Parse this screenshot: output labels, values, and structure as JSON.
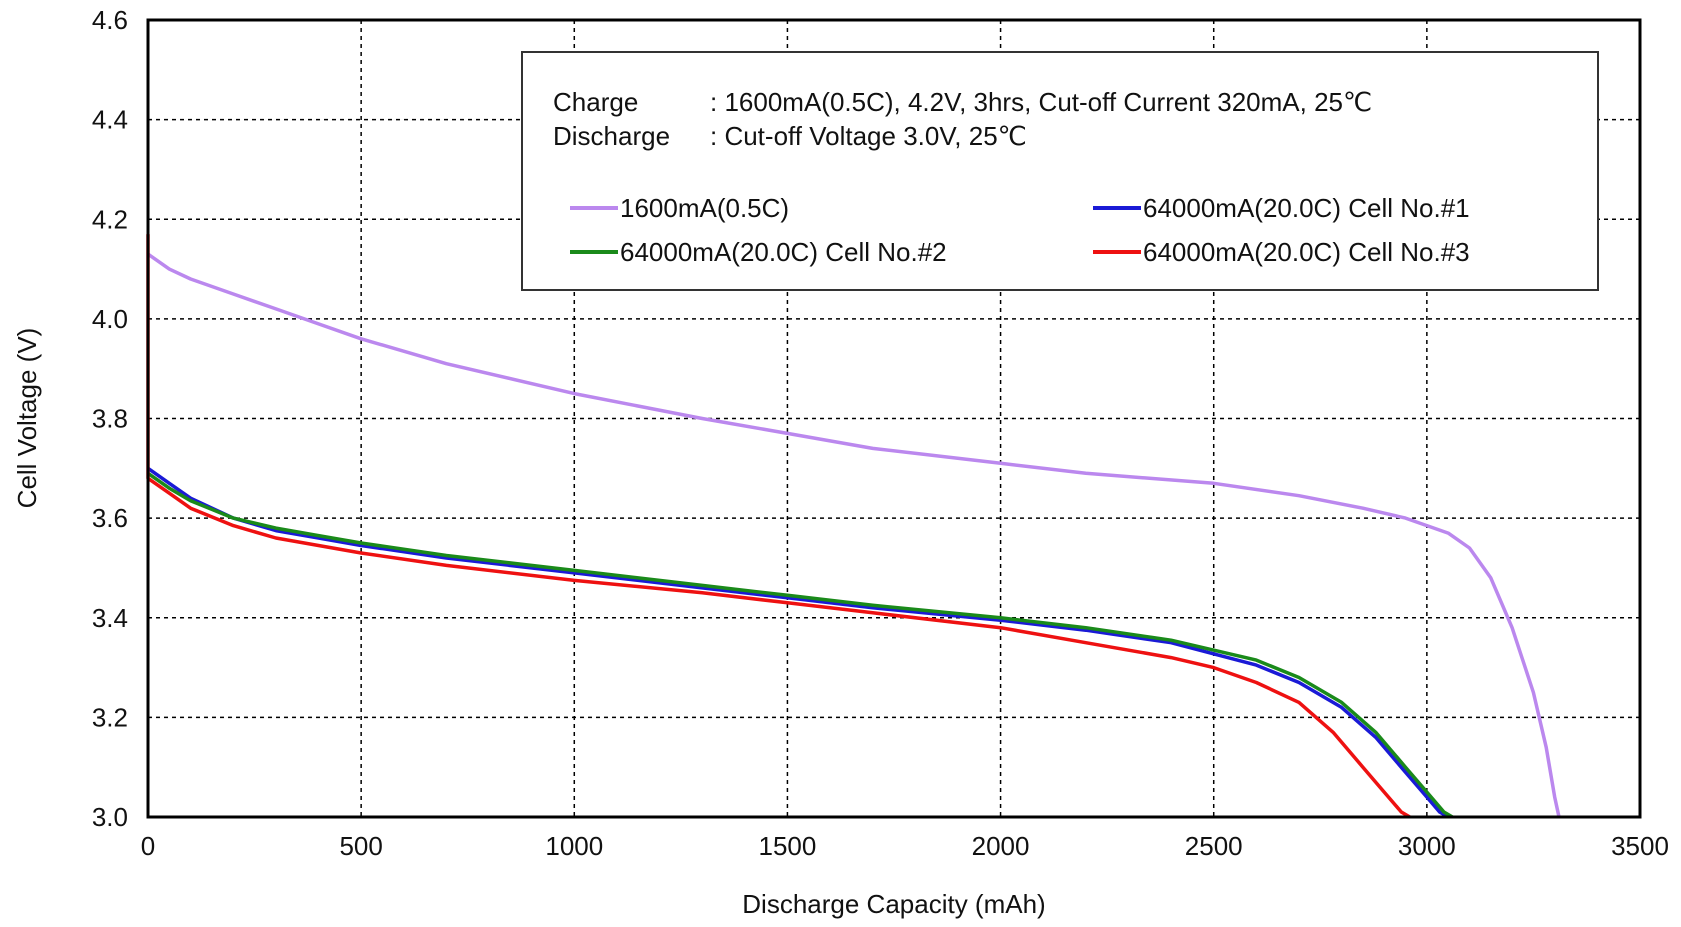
{
  "chart_data": {
    "type": "line",
    "xlabel": "Discharge Capacity (mAh)",
    "ylabel": "Cell Voltage (V)",
    "xlim": [
      0,
      3500
    ],
    "ylim": [
      3.0,
      4.6
    ],
    "xticks": [
      "0",
      "500",
      "1000",
      "1500",
      "2000",
      "2500",
      "3000",
      "3500"
    ],
    "yticks": [
      "3.0",
      "3.2",
      "3.4",
      "3.6",
      "3.8",
      "4.0",
      "4.2",
      "4.4",
      "4.6"
    ],
    "xtick_values": [
      0,
      500,
      1000,
      1500,
      2000,
      2500,
      3000,
      3500
    ],
    "ytick_values": [
      3.0,
      3.2,
      3.4,
      3.6,
      3.8,
      4.0,
      4.2,
      4.4,
      4.6
    ],
    "grid": true,
    "legend_position": "top-right",
    "annotations": {
      "charge_label": "Charge",
      "charge_text": ": 1600mA(0.5C), 4.2V, 3hrs, Cut-off Current 320mA, 25℃",
      "discharge_label": "Discharge",
      "discharge_text": ": Cut-off Voltage 3.0V, 25℃"
    },
    "series": [
      {
        "name": "1600mA(0.5C)",
        "color": "#bb88ee",
        "x": [
          0,
          50,
          100,
          200,
          300,
          400,
          500,
          700,
          1000,
          1300,
          1500,
          1700,
          2000,
          2200,
          2500,
          2700,
          2850,
          2950,
          3050,
          3100,
          3150,
          3200,
          3250,
          3280,
          3300,
          3310
        ],
        "y": [
          4.13,
          4.1,
          4.08,
          4.05,
          4.02,
          3.99,
          3.96,
          3.91,
          3.85,
          3.8,
          3.77,
          3.74,
          3.71,
          3.69,
          3.67,
          3.645,
          3.62,
          3.6,
          3.57,
          3.54,
          3.48,
          3.38,
          3.25,
          3.14,
          3.04,
          3.0
        ]
      },
      {
        "name": "64000mA(20.0C) Cell No.#1",
        "color": "#1a1ad6",
        "x": [
          0,
          50,
          100,
          200,
          300,
          400,
          500,
          700,
          1000,
          1300,
          1500,
          1700,
          2000,
          2200,
          2400,
          2600,
          2700,
          2800,
          2880,
          2950,
          3000,
          3030,
          3050
        ],
        "y": [
          3.7,
          3.67,
          3.64,
          3.6,
          3.575,
          3.56,
          3.545,
          3.52,
          3.49,
          3.46,
          3.44,
          3.42,
          3.395,
          3.375,
          3.35,
          3.305,
          3.27,
          3.22,
          3.16,
          3.09,
          3.04,
          3.01,
          3.0
        ]
      },
      {
        "name": "64000mA(20.0C) Cell No.#2",
        "color": "#1a8a1a",
        "x": [
          0,
          50,
          100,
          200,
          300,
          400,
          500,
          700,
          1000,
          1300,
          1500,
          1700,
          2000,
          2200,
          2400,
          2600,
          2700,
          2800,
          2880,
          2950,
          3000,
          3040,
          3060
        ],
        "y": [
          3.69,
          3.66,
          3.635,
          3.6,
          3.58,
          3.565,
          3.55,
          3.525,
          3.495,
          3.465,
          3.445,
          3.425,
          3.4,
          3.38,
          3.355,
          3.315,
          3.28,
          3.23,
          3.17,
          3.1,
          3.05,
          3.01,
          3.0
        ]
      },
      {
        "name": "64000mA(20.0C) Cell No.#3",
        "color": "#ee1111",
        "points": [
          [
            0,
            4.17
          ],
          [
            0,
            3.68
          ],
          [
            50,
            3.65
          ],
          [
            100,
            3.62
          ],
          [
            200,
            3.585
          ],
          [
            300,
            3.56
          ],
          [
            400,
            3.545
          ],
          [
            500,
            3.53
          ],
          [
            700,
            3.505
          ],
          [
            1000,
            3.475
          ],
          [
            1300,
            3.45
          ],
          [
            1500,
            3.43
          ],
          [
            1700,
            3.41
          ],
          [
            2000,
            3.38
          ],
          [
            2200,
            3.35
          ],
          [
            2400,
            3.32
          ],
          [
            2500,
            3.3
          ],
          [
            2600,
            3.27
          ],
          [
            2700,
            3.23
          ],
          [
            2780,
            3.17
          ],
          [
            2850,
            3.1
          ],
          [
            2900,
            3.05
          ],
          [
            2940,
            3.01
          ],
          [
            2960,
            3.0
          ]
        ]
      }
    ]
  }
}
